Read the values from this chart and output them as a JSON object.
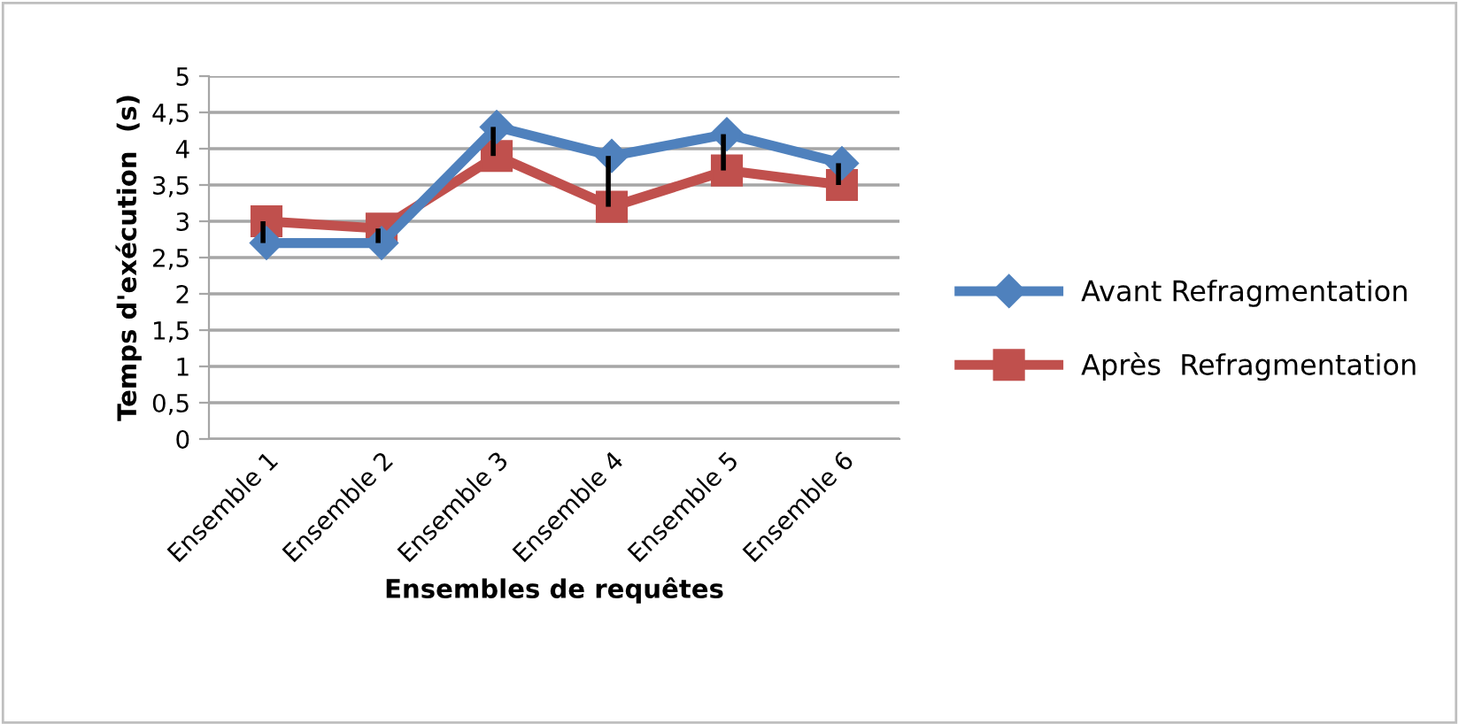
{
  "chart_data": {
    "type": "line",
    "xlabel": "Ensembles de requêtes",
    "ylabel": "Temps d'exécution  (s)",
    "categories": [
      "Ensemble 1",
      "Ensemble 2",
      "Ensemble 3",
      "Ensemble 4",
      "Ensemble 5",
      "Ensemble 6"
    ],
    "series": [
      {
        "name": "Avant Refragmentation",
        "color": "#4f81bd",
        "marker": "diamond",
        "values": [
          2.7,
          2.7,
          4.3,
          3.9,
          4.2,
          3.8
        ]
      },
      {
        "name": "Après  Refragmentation",
        "color": "#c0504d",
        "marker": "square",
        "values": [
          3.0,
          2.9,
          3.9,
          3.2,
          3.7,
          3.5
        ],
        "errors": [
          [
            2.7,
            3.0
          ],
          [
            2.7,
            2.9
          ],
          [
            3.9,
            4.3
          ],
          [
            3.2,
            3.9
          ],
          [
            3.7,
            4.2
          ],
          [
            3.5,
            3.8
          ]
        ]
      }
    ],
    "ylim": [
      0,
      5
    ],
    "yticks": [
      0,
      {
        "value": 0.5,
        "label": "0,5"
      },
      1,
      {
        "value": 1.5,
        "label": "1,5"
      },
      2,
      {
        "value": 2.5,
        "label": "2,5"
      },
      3,
      {
        "value": 3.5,
        "label": "3,5"
      },
      4,
      {
        "value": 4.5,
        "label": "4,5"
      },
      5
    ],
    "grid": "y",
    "legend": "right"
  }
}
